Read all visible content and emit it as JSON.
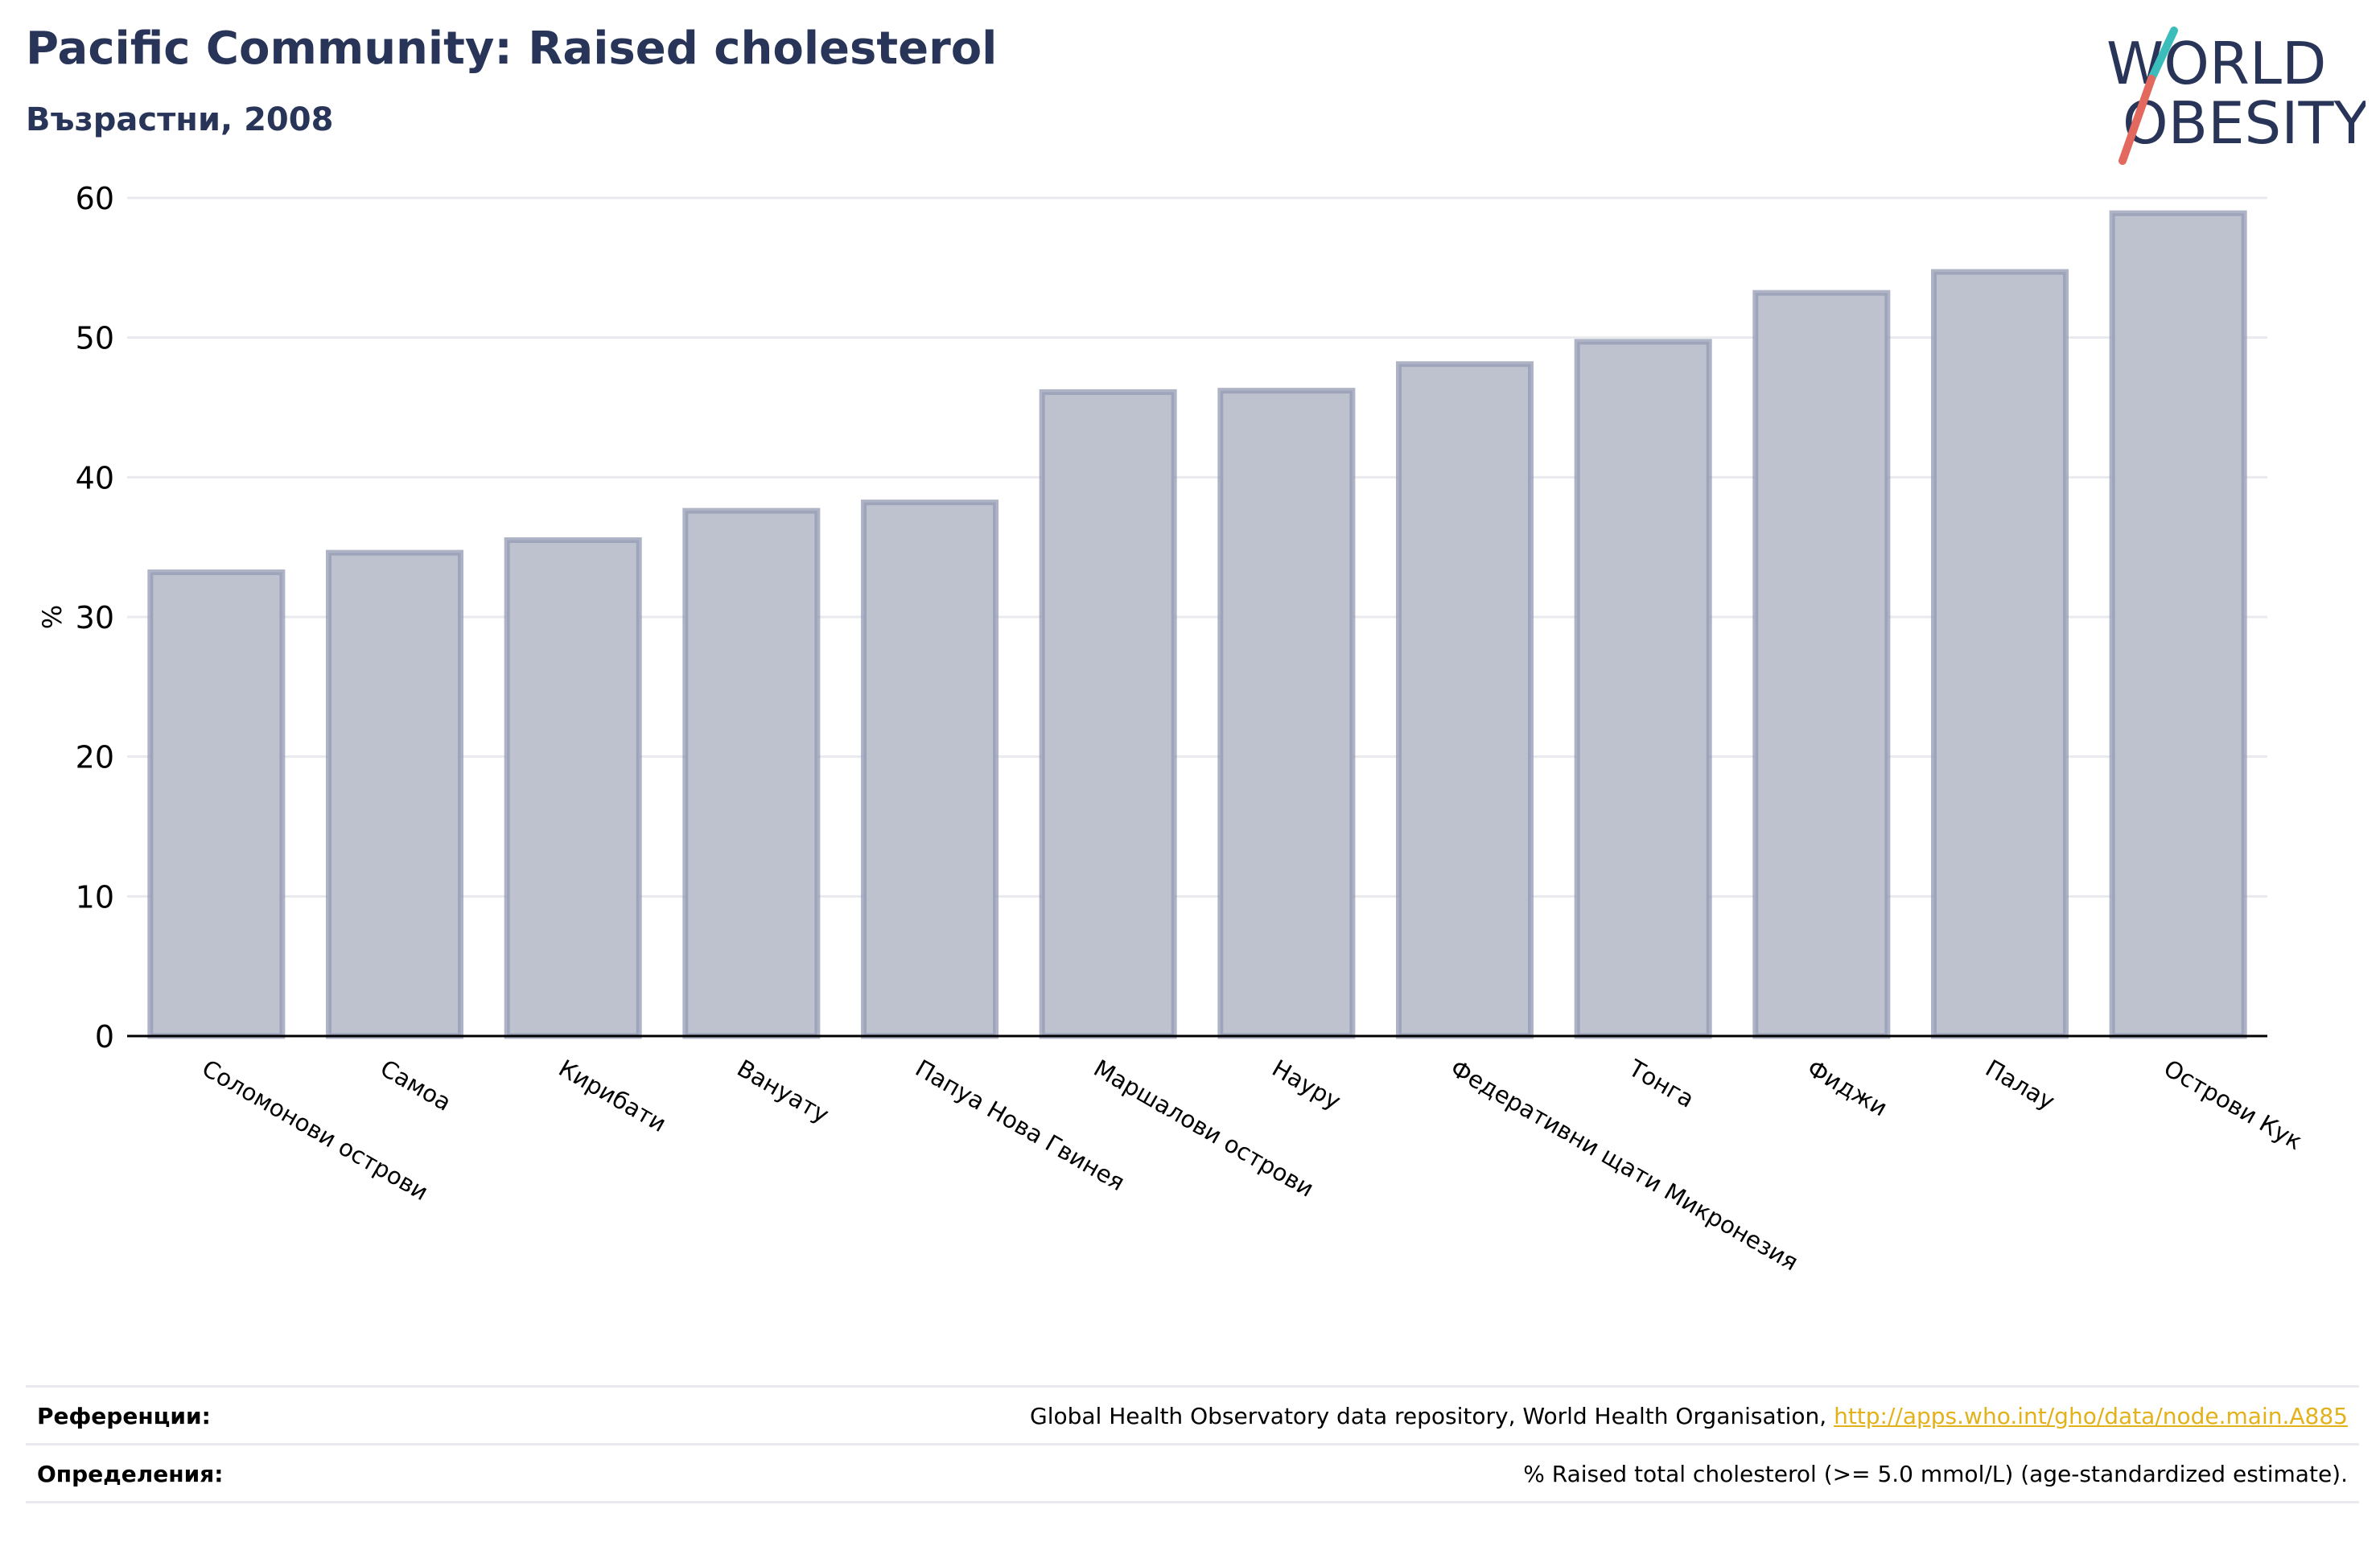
{
  "header": {
    "title": "Pacific Community: Raised cholesterol",
    "subtitle": "Възрастни, 2008",
    "logo_text_line1": "WORLD",
    "logo_text_line2": "OBESITY"
  },
  "colors": {
    "title": "#283559",
    "bar_fill": "#bec1ce",
    "bar_stroke": "#9399b3",
    "grid": "#e9eaee",
    "axis": "#000000",
    "link": "#e3b11a",
    "logo_teal": "#3bbdbb",
    "logo_red": "#e3685d"
  },
  "chart_data": {
    "type": "bar",
    "ylabel": "%",
    "ylim": [
      0,
      60
    ],
    "yticks": [
      0,
      10,
      20,
      30,
      40,
      50,
      60
    ],
    "grid": true,
    "categories": [
      "Соломонови острови",
      "Самоа",
      "Кирибати",
      "Вануату",
      "Папуа Нова Гвинея",
      "Маршалови острови",
      "Науру",
      "Федеративни щати Микронезия",
      "Тонга",
      "Фиджи",
      "Палау",
      "Острови Кук"
    ],
    "values": [
      33.2,
      34.6,
      35.5,
      37.6,
      38.2,
      46.1,
      46.2,
      48.1,
      49.7,
      53.2,
      54.7,
      58.9
    ]
  },
  "footer": {
    "references_label": "Референции:",
    "references_text": "Global Health Observatory data repository, World Health Organisation, ",
    "references_link": "http://apps.who.int/gho/data/node.main.A885",
    "definitions_label": "Определения:",
    "definitions_text": "% Raised total cholesterol (>= 5.0 mmol/L) (age-standardized estimate)."
  }
}
